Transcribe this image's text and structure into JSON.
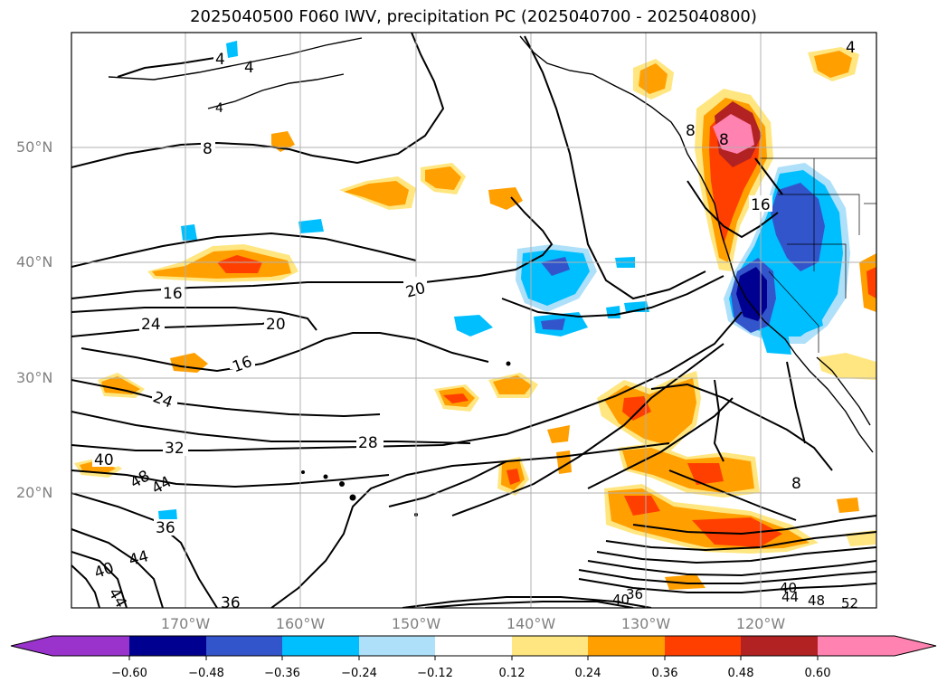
{
  "title": "2025040500 F060 IWV, precipitation PC (2025040700 - 2025040800)",
  "lat_labels": [
    "50°N",
    "40°N",
    "30°N",
    "20°N"
  ],
  "lon_labels": [
    "170°W",
    "160°W",
    "150°W",
    "140°W",
    "130°W",
    "120°W"
  ],
  "contour_labels": [
    "4",
    "4",
    "4",
    "4",
    "8",
    "16",
    "20",
    "20",
    "24",
    "16",
    "24",
    "28",
    "32",
    "40",
    "48",
    "44",
    "36",
    "44",
    "40",
    "44",
    "36",
    "40",
    "44",
    "48",
    "52",
    "40",
    "36",
    "16",
    "8",
    "8",
    "8"
  ],
  "colorbar": {
    "ticks": [
      "−0.60",
      "−0.48",
      "−0.36",
      "−0.24",
      "−0.12",
      "0.12",
      "0.24",
      "0.36",
      "0.48",
      "0.60"
    ],
    "colors": [
      "#9933cc",
      "#000090",
      "#3355cc",
      "#00bfff",
      "#aee0fa",
      "#ffffff",
      "#ffe680",
      "#ff9f00",
      "#ff3f00",
      "#b22222",
      "#ff82b0"
    ]
  }
}
